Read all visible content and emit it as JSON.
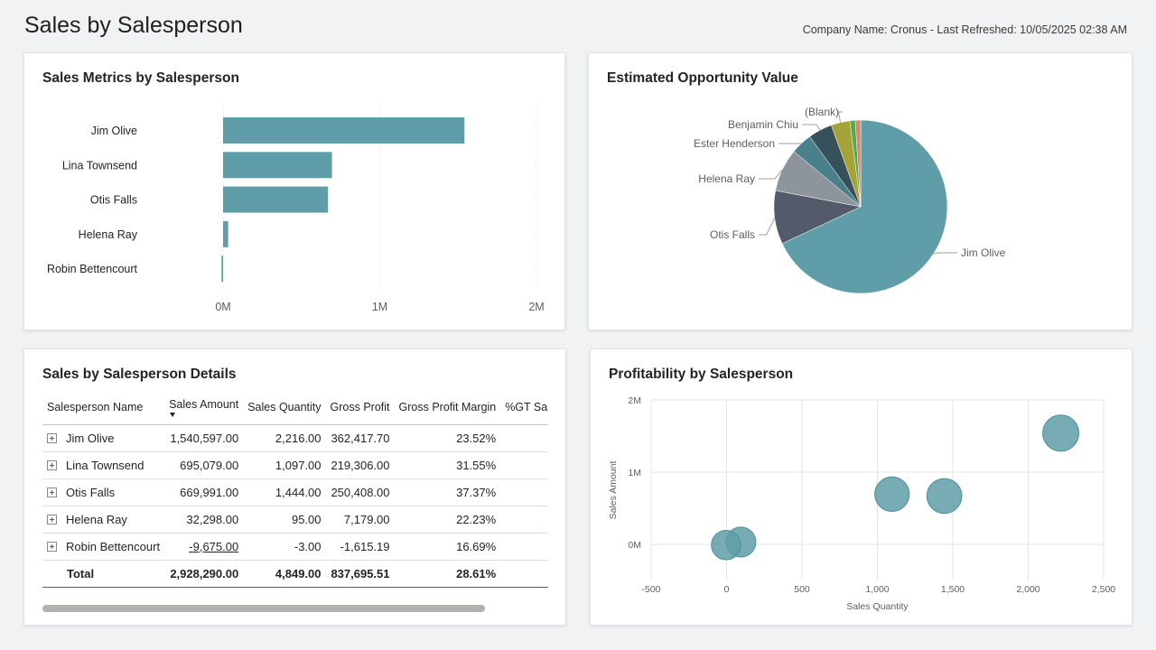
{
  "page": {
    "title": "Sales by Salesperson",
    "refresh_info": "Company Name: Cronus - Last Refreshed: 10/05/2025 02:38 AM"
  },
  "colors": {
    "teal": "#5f9ea8",
    "slate": "#535b6b",
    "grey": "#8d949c",
    "blue_teal": "#4a7f8c",
    "dark_slate": "#36505c",
    "olive": "#a5a238",
    "green": "#5aa84a",
    "salmon": "#d08b78"
  },
  "chart_data": [
    {
      "id": "bar",
      "type": "bar",
      "orientation": "horizontal",
      "title": "Sales Metrics by Salesperson",
      "categories": [
        "Jim Olive",
        "Lina Townsend",
        "Otis Falls",
        "Helena Ray",
        "Robin Bettencourt"
      ],
      "values": [
        1540597,
        695079,
        669991,
        32298,
        -9675
      ],
      "xlim": [
        0,
        2000000
      ],
      "ticks": [
        {
          "v": 0,
          "label": "0M"
        },
        {
          "v": 1000000,
          "label": "1M"
        },
        {
          "v": 2000000,
          "label": "2M"
        }
      ],
      "grid": true
    },
    {
      "id": "pie",
      "type": "pie",
      "title": "Estimated Opportunity Value",
      "slices": [
        {
          "label": "Jim Olive",
          "value": 68.0,
          "color": "#5f9ea8"
        },
        {
          "label": "Otis Falls",
          "value": 10.0,
          "color": "#535b6b"
        },
        {
          "label": "Helena Ray",
          "value": 8.0,
          "color": "#8d949c"
        },
        {
          "label": "Ester Henderson",
          "value": 4.0,
          "color": "#4a7f8c"
        },
        {
          "label": "Benjamin Chiu",
          "value": 4.5,
          "color": "#36505c"
        },
        {
          "label": "(Blank)",
          "value": 3.5,
          "color": "#a5a238"
        },
        {
          "label": "",
          "value": 1.0,
          "color": "#5aa84a"
        },
        {
          "label": "",
          "value": 1.0,
          "color": "#d08b78"
        }
      ]
    },
    {
      "id": "scatter",
      "type": "scatter",
      "title": "Profitability by Salesperson",
      "xlabel": "Sales Quantity",
      "ylabel": "Sales Amount",
      "xlim": [
        -500,
        2500
      ],
      "ylim": [
        -500000,
        2000000
      ],
      "xticks": [
        {
          "v": -500,
          "label": "-500"
        },
        {
          "v": 0,
          "label": "0"
        },
        {
          "v": 500,
          "label": "500"
        },
        {
          "v": 1000,
          "label": "1,000"
        },
        {
          "v": 1500,
          "label": "1,500"
        },
        {
          "v": 2000,
          "label": "2,000"
        },
        {
          "v": 2500,
          "label": "2,500"
        }
      ],
      "yticks": [
        {
          "v": 0,
          "label": "0M"
        },
        {
          "v": 1000000,
          "label": "1M"
        },
        {
          "v": 2000000,
          "label": "2M"
        }
      ],
      "points": [
        {
          "name": "Jim Olive",
          "x": 2216,
          "y": 1540597,
          "size": 362417.7
        },
        {
          "name": "Lina Townsend",
          "x": 1097,
          "y": 695079,
          "size": 219306
        },
        {
          "name": "Otis Falls",
          "x": 1444,
          "y": 669991,
          "size": 250408
        },
        {
          "name": "Helena Ray",
          "x": 95,
          "y": 32298,
          "size": 7179
        },
        {
          "name": "Robin Bettencourt",
          "x": -3,
          "y": -9675,
          "size": -1615.19
        }
      ]
    }
  ],
  "table": {
    "title": "Sales by Salesperson Details",
    "columns": [
      "Salesperson Name",
      "Sales Amount",
      "Sales Quantity",
      "Gross Profit",
      "Gross Profit Margin",
      "%GT Sal"
    ],
    "rows": [
      {
        "name": "Jim Olive",
        "amount": "1,540,597.00",
        "qty": "2,216.00",
        "profit": "362,417.70",
        "margin": "23.52%"
      },
      {
        "name": "Lina Townsend",
        "amount": "695,079.00",
        "qty": "1,097.00",
        "profit": "219,306.00",
        "margin": "31.55%"
      },
      {
        "name": "Otis Falls",
        "amount": "669,991.00",
        "qty": "1,444.00",
        "profit": "250,408.00",
        "margin": "37.37%"
      },
      {
        "name": "Helena Ray",
        "amount": "32,298.00",
        "qty": "95.00",
        "profit": "7,179.00",
        "margin": "22.23%"
      },
      {
        "name": "Robin Bettencourt",
        "amount": "-9,675.00",
        "qty": "-3.00",
        "profit": "-1,615.19",
        "margin": "16.69%"
      }
    ],
    "total": {
      "label": "Total",
      "amount": "2,928,290.00",
      "qty": "4,849.00",
      "profit": "837,695.51",
      "margin": "28.61%"
    }
  }
}
